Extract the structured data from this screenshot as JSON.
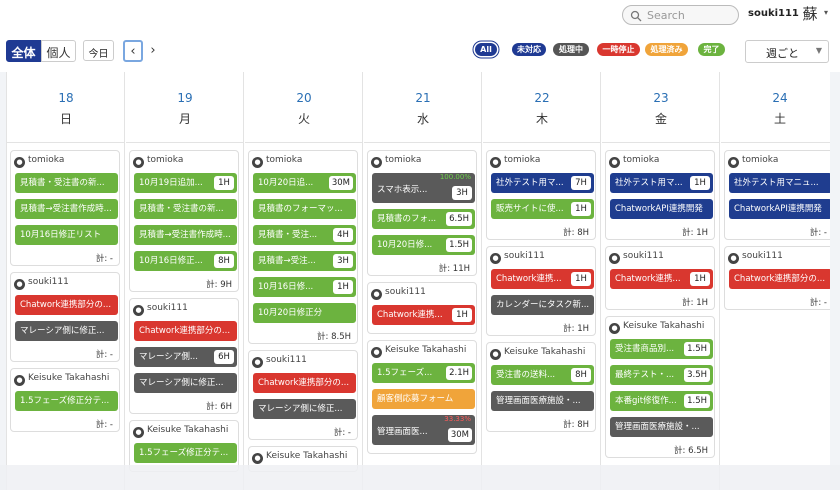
{
  "header": {
    "search_placeholder": "Search",
    "username": "souki111",
    "avatar_char": "蘇"
  },
  "toolbar": {
    "all_label": "全体",
    "personal_label": "個人",
    "today_label": "今日",
    "prev": "‹",
    "next": "›",
    "view_select": "週ごと"
  },
  "filters": [
    {
      "label": "All",
      "color": "#1f3a93"
    },
    {
      "label": "未対応",
      "color": "#1f3a93"
    },
    {
      "label": "処理中",
      "color": "#555555"
    },
    {
      "label": "一時停止",
      "color": "#d9372f"
    },
    {
      "label": "処理済み",
      "color": "#f0a43a"
    },
    {
      "label": "完了",
      "color": "#6cb33f"
    }
  ],
  "status_colors": {
    "green": "#6cb33f",
    "red": "#d9372f",
    "dark": "#5a5a5a",
    "orange": "#f0a43a",
    "navy": "#1f3d8f"
  },
  "days": [
    {
      "num": "18",
      "name": "日",
      "groups": [
        {
          "user": "tomioka",
          "tasks": [
            {
              "t": "見積書・受注書の新...",
              "c": "g"
            },
            {
              "t": "見積書→受注書作成時...",
              "c": "g"
            },
            {
              "t": "10月16日修正リスト",
              "c": "g"
            }
          ],
          "total": "計: -"
        },
        {
          "user": "souki111",
          "tasks": [
            {
              "t": "Chatwork連携部分の...",
              "c": "r"
            },
            {
              "t": "マレーシア側に修正...",
              "c": "d"
            }
          ],
          "total": "計: -"
        },
        {
          "user": "Keisuke Takahashi",
          "tasks": [
            {
              "t": "1.5フェーズ修正分テ...",
              "c": "g"
            }
          ],
          "total": "計: -"
        }
      ]
    },
    {
      "num": "19",
      "name": "月",
      "groups": [
        {
          "user": "tomioka",
          "tasks": [
            {
              "t": "10月19日追加...",
              "c": "g",
              "h": "1H"
            },
            {
              "t": "見積書・受注書の新...",
              "c": "g"
            },
            {
              "t": "見積書→受注書作成時...",
              "c": "g"
            },
            {
              "t": "10月16日修正...",
              "c": "g",
              "h": "8H"
            }
          ],
          "total": "計: 9H"
        },
        {
          "user": "souki111",
          "tasks": [
            {
              "t": "Chatwork連携部分の...",
              "c": "r"
            },
            {
              "t": "マレーシア側...",
              "c": "d",
              "h": "6H"
            },
            {
              "t": "マレーシア側に修正...",
              "c": "d"
            }
          ],
          "total": "計: 6H"
        },
        {
          "user": "Keisuke Takahashi",
          "tasks": [
            {
              "t": "1.5フェーズ修正分テ...",
              "c": "g"
            }
          ],
          "total": ""
        }
      ]
    },
    {
      "num": "20",
      "name": "火",
      "groups": [
        {
          "user": "tomioka",
          "tasks": [
            {
              "t": "10月20日追...",
              "c": "g",
              "h": "30M"
            },
            {
              "t": "見積書のフォーマッ...",
              "c": "g"
            },
            {
              "t": "見積書・受注...",
              "c": "g",
              "h": "4H"
            },
            {
              "t": "見積書→受注...",
              "c": "g",
              "h": "3H"
            },
            {
              "t": "10月16日修...",
              "c": "g",
              "h": "1H"
            },
            {
              "t": "10月20日修正分",
              "c": "g"
            }
          ],
          "total": "計: 8.5H"
        },
        {
          "user": "souki111",
          "tasks": [
            {
              "t": "Chatwork連携部分の...",
              "c": "r"
            },
            {
              "t": "マレーシア側に修正...",
              "c": "d"
            }
          ],
          "total": "計: -"
        },
        {
          "user": "Keisuke Takahashi",
          "tasks": [],
          "total": ""
        }
      ]
    },
    {
      "num": "21",
      "name": "水",
      "groups": [
        {
          "user": "tomioka",
          "tasks": [
            {
              "t": "スマホ表示...",
              "c": "d",
              "h": "3H",
              "p": "100.00%",
              "tall": true
            },
            {
              "t": "見積書のフォ...",
              "c": "g",
              "h": "6.5H"
            },
            {
              "t": "10月20日修...",
              "c": "g",
              "h": "1.5H"
            }
          ],
          "total": "計: 11H"
        },
        {
          "user": "souki111",
          "tasks": [
            {
              "t": "Chatwork連携...",
              "c": "r",
              "h": "1H"
            }
          ],
          "total": ""
        },
        {
          "user": "Keisuke Takahashi",
          "tasks": [
            {
              "t": "1.5フェーズ...",
              "c": "g",
              "h": "2.1H"
            },
            {
              "t": "顧客側応募フォーム",
              "c": "o"
            },
            {
              "t": "管理画面医...",
              "c": "d",
              "h": "30M",
              "p": "33.33%",
              "tall": true
            }
          ],
          "total": ""
        }
      ]
    },
    {
      "num": "22",
      "name": "木",
      "groups": [
        {
          "user": "tomioka",
          "tasks": [
            {
              "t": "社外テスト用マ...",
              "c": "b",
              "h": "7H"
            },
            {
              "t": "販売サイトに使...",
              "c": "g",
              "h": "1H"
            }
          ],
          "total": "計: 8H"
        },
        {
          "user": "souki111",
          "tasks": [
            {
              "t": "Chatwork連携...",
              "c": "r",
              "h": "1H"
            },
            {
              "t": "カレンダーにタスク新...",
              "c": "d"
            }
          ],
          "total": "計: 1H"
        },
        {
          "user": "Keisuke Takahashi",
          "tasks": [
            {
              "t": "受注書の送料...",
              "c": "g",
              "h": "8H"
            },
            {
              "t": "管理画面医療施設・...",
              "c": "d"
            }
          ],
          "total": "計: 8H"
        }
      ]
    },
    {
      "num": "23",
      "name": "金",
      "groups": [
        {
          "user": "tomioka",
          "tasks": [
            {
              "t": "社外テスト用マ...",
              "c": "b",
              "h": "1H"
            },
            {
              "t": "ChatworkAPI連携開発",
              "c": "b"
            }
          ],
          "total": "計: 1H"
        },
        {
          "user": "souki111",
          "tasks": [
            {
              "t": "Chatwork連携...",
              "c": "r",
              "h": "1H"
            }
          ],
          "total": "計: 1H"
        },
        {
          "user": "Keisuke Takahashi",
          "tasks": [
            {
              "t": "受注書商品別...",
              "c": "g",
              "h": "1.5H"
            },
            {
              "t": "最終テスト・...",
              "c": "g",
              "h": "3.5H"
            },
            {
              "t": "本番git修復作...",
              "c": "g",
              "h": "1.5H"
            },
            {
              "t": "管理画面医療施設・...",
              "c": "d"
            }
          ],
          "total": "計: 6.5H"
        }
      ]
    },
    {
      "num": "24",
      "name": "土",
      "groups": [
        {
          "user": "tomioka",
          "tasks": [
            {
              "t": "社外テスト用マニュ...",
              "c": "b"
            },
            {
              "t": "ChatworkAPI連携開発",
              "c": "b"
            }
          ],
          "total": "計: -"
        },
        {
          "user": "souki111",
          "tasks": [
            {
              "t": "Chatwork連携部分の...",
              "c": "r"
            }
          ],
          "total": "計: -"
        }
      ]
    }
  ]
}
